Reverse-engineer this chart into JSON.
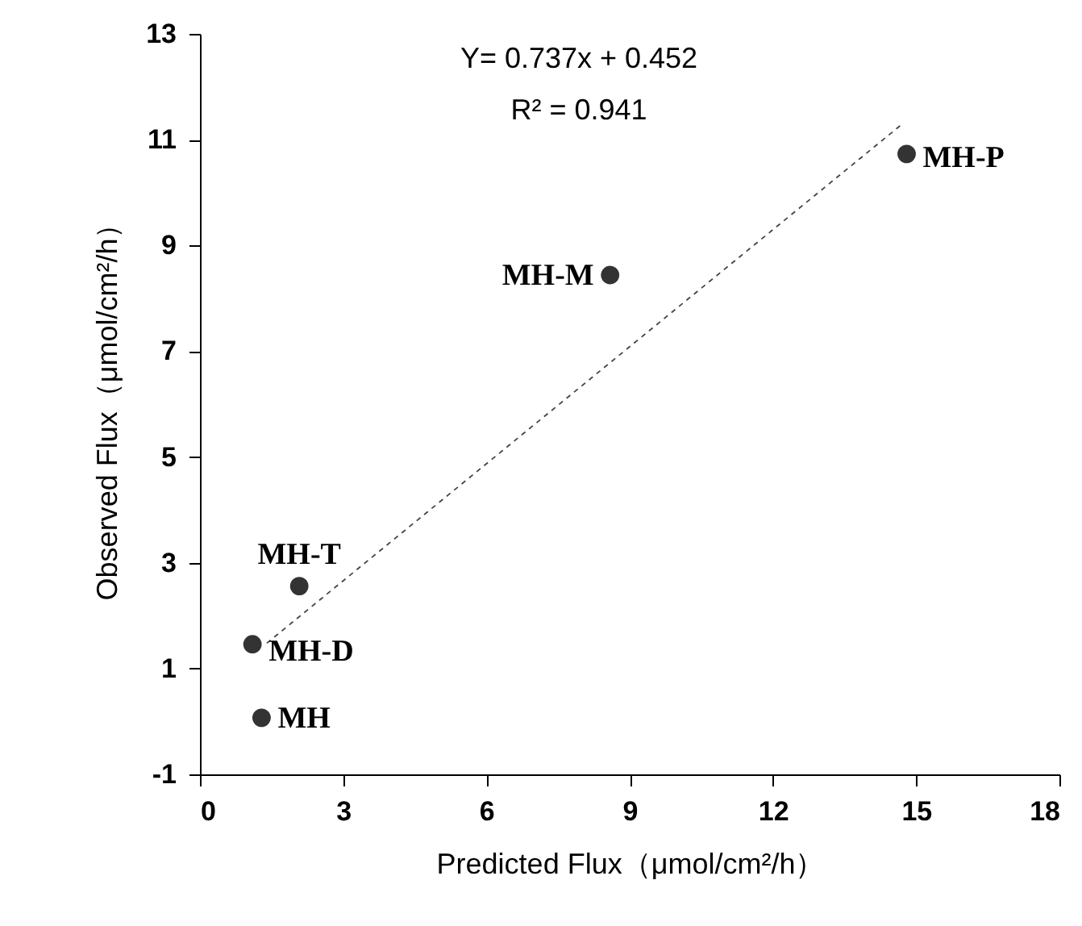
{
  "chart_data": {
    "type": "scatter",
    "xlabel": "Predicted Flux（μmol/cm²/h）",
    "ylabel": "Observed Flux（μmol/cm²/h）",
    "xlim": [
      0,
      18
    ],
    "xticks": [
      0,
      3,
      6,
      9,
      12,
      15,
      18
    ],
    "ylim": [
      -1,
      13
    ],
    "yticks": [
      -1,
      1,
      3,
      5,
      7,
      9,
      11,
      13
    ],
    "grid": false,
    "series": [
      {
        "type": "scatter",
        "color": "#333333",
        "marker": "circle",
        "x": [
          1.29,
          1.1,
          2.08,
          8.59,
          14.8
        ],
        "values": [
          0.07,
          1.46,
          2.56,
          8.44,
          10.73
        ]
      },
      {
        "type": "line",
        "color": "#444444",
        "line_style": "dashed",
        "marker": "none",
        "x": [
          1.4,
          14.7
        ],
        "values": [
          1.48,
          11.29
        ]
      }
    ],
    "annotations": [
      "Y= 0.737x + 0.452",
      "R² = 0.941",
      {
        "text": "MH",
        "x": 1.29,
        "y": 0.07
      },
      {
        "text": "MH-D",
        "x": 1.1,
        "y": 1.46
      },
      {
        "text": "MH-T",
        "x": 2.08,
        "y": 2.56
      },
      {
        "text": "MH-M",
        "x": 8.59,
        "y": 8.44
      },
      {
        "text": "MH-P",
        "x": 14.8,
        "y": 10.73
      }
    ]
  }
}
